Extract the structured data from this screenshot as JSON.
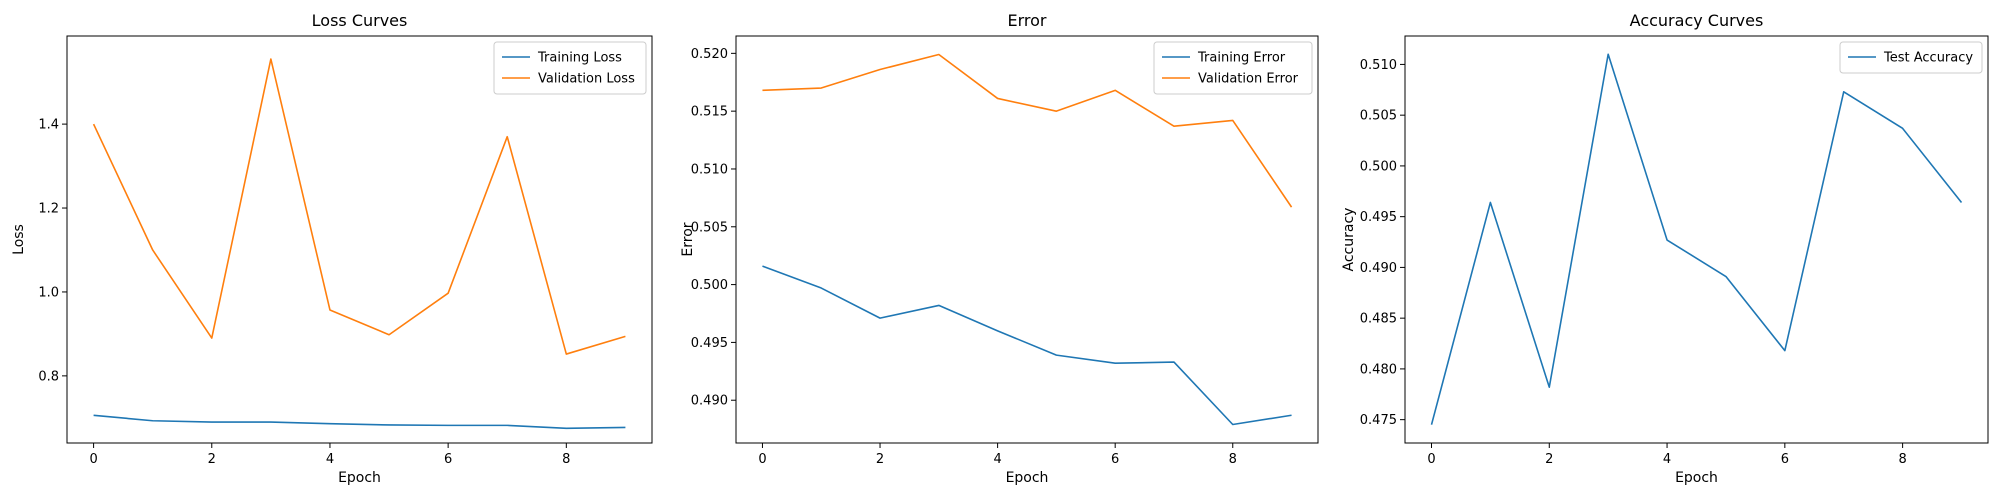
{
  "chart_data": [
    {
      "type": "line",
      "title": "Loss Curves",
      "xlabel": "Epoch",
      "ylabel": "Loss",
      "x": [
        0,
        1,
        2,
        3,
        4,
        5,
        6,
        7,
        8,
        9
      ],
      "series": [
        {
          "name": "Training Loss",
          "color": "#1f77b4",
          "values": [
            0.706,
            0.693,
            0.69,
            0.69,
            0.686,
            0.683,
            0.682,
            0.682,
            0.675,
            0.677
          ]
        },
        {
          "name": "Validation Loss",
          "color": "#ff7f0e",
          "values": [
            1.4,
            1.1,
            0.89,
            1.555,
            0.957,
            0.898,
            0.997,
            1.37,
            0.852,
            0.894
          ]
        }
      ],
      "xlim": [
        -0.45,
        9.45
      ],
      "ylim": [
        0.64,
        1.61
      ],
      "xticks": [
        0,
        2,
        4,
        6,
        8
      ],
      "yticks": [
        0.8,
        1.0,
        1.2,
        1.4
      ],
      "ytick_labels": [
        "0.8",
        "1.0",
        "1.2",
        "1.4"
      ],
      "legend": "top-right",
      "grid": false
    },
    {
      "type": "line",
      "title": "Error",
      "xlabel": "Epoch",
      "ylabel": "Error",
      "x": [
        0,
        1,
        2,
        3,
        4,
        5,
        6,
        7,
        8,
        9
      ],
      "series": [
        {
          "name": "Training Error",
          "color": "#1f77b4",
          "values": [
            0.5016,
            0.4997,
            0.4971,
            0.4982,
            0.496,
            0.4939,
            0.4932,
            0.4933,
            0.4879,
            0.4887
          ]
        },
        {
          "name": "Validation Error",
          "color": "#ff7f0e",
          "values": [
            0.5168,
            0.517,
            0.5186,
            0.5199,
            0.5161,
            0.515,
            0.5168,
            0.5137,
            0.5142,
            0.5067
          ]
        }
      ],
      "xlim": [
        -0.45,
        9.45
      ],
      "ylim": [
        0.4863,
        0.5215
      ],
      "xticks": [
        0,
        2,
        4,
        6,
        8
      ],
      "yticks": [
        0.49,
        0.495,
        0.5,
        0.505,
        0.51,
        0.515,
        0.52
      ],
      "ytick_labels": [
        "0.490",
        "0.495",
        "0.500",
        "0.505",
        "0.510",
        "0.515",
        "0.520"
      ],
      "legend": "top-right",
      "grid": false
    },
    {
      "type": "line",
      "title": "Accuracy Curves",
      "xlabel": "Epoch",
      "ylabel": "Accuracy",
      "x": [
        0,
        1,
        2,
        3,
        4,
        5,
        6,
        7,
        8,
        9
      ],
      "series": [
        {
          "name": "Test Accuracy",
          "color": "#1f77b4",
          "values": [
            0.4745,
            0.4964,
            0.4782,
            0.511,
            0.4927,
            0.4891,
            0.4818,
            0.5073,
            0.5037,
            0.4964
          ]
        }
      ],
      "xlim": [
        -0.45,
        9.45
      ],
      "ylim": [
        0.4727,
        0.5128
      ],
      "xticks": [
        0,
        2,
        4,
        6,
        8
      ],
      "yticks": [
        0.475,
        0.48,
        0.485,
        0.49,
        0.495,
        0.5,
        0.505,
        0.51
      ],
      "ytick_labels": [
        "0.475",
        "0.480",
        "0.485",
        "0.490",
        "0.495",
        "0.500",
        "0.505",
        "0.510"
      ],
      "legend": "top-right",
      "grid": false
    }
  ]
}
